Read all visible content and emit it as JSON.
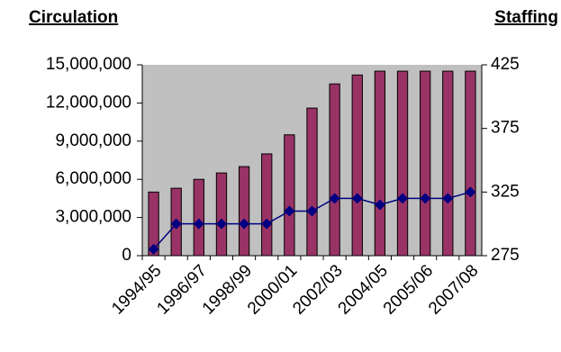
{
  "chart_data": {
    "type": "bar_line",
    "y_label": "Circulation",
    "y2_label": "Staffing",
    "categories": [
      "1994/95",
      null,
      "1996/97",
      null,
      "1998/99",
      null,
      "2000/01",
      null,
      "2002/03",
      null,
      "2004/05",
      null,
      "2005/06",
      null,
      "2007/08"
    ],
    "series": [
      {
        "name": "Circulation",
        "type": "bar",
        "color": "#993366",
        "values": [
          5000000,
          5300000,
          6000000,
          6500000,
          7000000,
          8000000,
          9500000,
          11600000,
          13500000,
          14200000,
          14500000,
          14500000,
          14500000,
          14500000,
          14500000
        ]
      },
      {
        "name": "Staffing",
        "type": "line",
        "axis": "y2",
        "color": "#000080",
        "values": [
          280,
          300,
          300,
          300,
          300,
          300,
          310,
          310,
          320,
          320,
          315,
          320,
          320,
          320,
          325
        ]
      }
    ],
    "ylim": [
      0,
      15000000
    ],
    "yticks": [
      0,
      {
        "value": 3000000,
        "label": "3,000,000"
      },
      {
        "value": 6000000,
        "label": "6,000,000"
      },
      {
        "value": 9000000,
        "label": "9,000,000"
      },
      {
        "value": 12000000,
        "label": "12,000,000"
      },
      {
        "value": 15000000,
        "label": "15,000,000"
      }
    ],
    "y2lim": [
      275,
      425
    ],
    "y2ticks": [
      275,
      325,
      375,
      425
    ],
    "plot_background": "#c0c0c0"
  }
}
